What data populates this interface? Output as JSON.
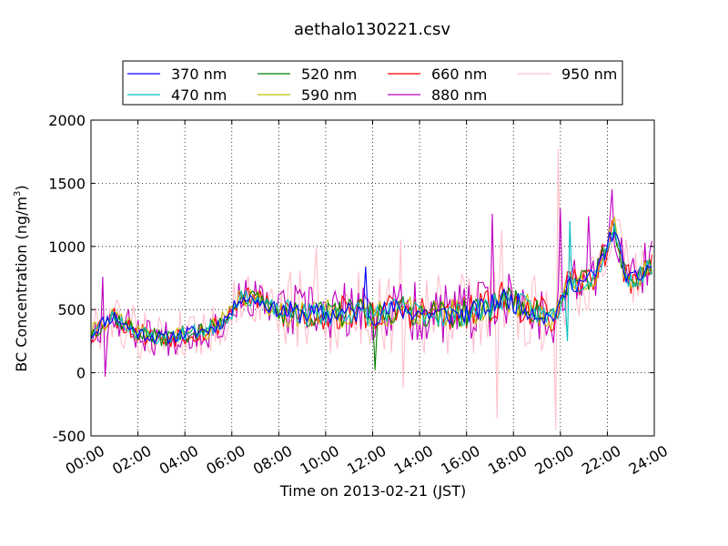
{
  "chart_data": {
    "type": "line",
    "title": "aethalo130221.csv",
    "xlabel": "Time on 2013-02-21 (JST)",
    "ylabel": "BC Concentration (ng/m",
    "ylabel_superscript": "3",
    "ylabel_close": ")",
    "xlim": [
      0,
      24
    ],
    "ylim": [
      -500,
      2000
    ],
    "x_ticks": [
      "00:00",
      "02:00",
      "04:00",
      "06:00",
      "08:00",
      "10:00",
      "12:00",
      "14:00",
      "16:00",
      "18:00",
      "20:00",
      "22:00",
      "24:00"
    ],
    "y_ticks": [
      "-500",
      "0",
      "500",
      "1000",
      "1500",
      "2000"
    ],
    "y_tick_values": [
      -500,
      0,
      500,
      1000,
      1500,
      2000
    ],
    "grid": true,
    "legend_position": "top",
    "x_step_hours": 0.1,
    "baseline": [
      {
        "t": 0,
        "v": 300
      },
      {
        "t": 0.5,
        "v": 400
      },
      {
        "t": 1,
        "v": 450
      },
      {
        "t": 1.5,
        "v": 370
      },
      {
        "t": 2,
        "v": 320
      },
      {
        "t": 3,
        "v": 270
      },
      {
        "t": 4,
        "v": 310
      },
      {
        "t": 5,
        "v": 340
      },
      {
        "t": 5.5,
        "v": 390
      },
      {
        "t": 6,
        "v": 480
      },
      {
        "t": 6.3,
        "v": 600
      },
      {
        "t": 7,
        "v": 580
      },
      {
        "t": 8,
        "v": 490
      },
      {
        "t": 9,
        "v": 470
      },
      {
        "t": 10,
        "v": 460
      },
      {
        "t": 11,
        "v": 480
      },
      {
        "t": 12,
        "v": 460
      },
      {
        "t": 13,
        "v": 500
      },
      {
        "t": 14,
        "v": 480
      },
      {
        "t": 15,
        "v": 460
      },
      {
        "t": 16,
        "v": 470
      },
      {
        "t": 17,
        "v": 520
      },
      {
        "t": 17.5,
        "v": 600
      },
      {
        "t": 18,
        "v": 560
      },
      {
        "t": 19,
        "v": 480
      },
      {
        "t": 19.5,
        "v": 430
      },
      {
        "t": 20,
        "v": 520
      },
      {
        "t": 20.3,
        "v": 700
      },
      {
        "t": 21,
        "v": 720
      },
      {
        "t": 21.5,
        "v": 780
      },
      {
        "t": 22,
        "v": 1000
      },
      {
        "t": 22.3,
        "v": 1150
      },
      {
        "t": 22.7,
        "v": 820
      },
      {
        "t": 23,
        "v": 720
      },
      {
        "t": 23.5,
        "v": 780
      },
      {
        "t": 23.8,
        "v": 850
      }
    ],
    "series": [
      {
        "name": "370 nm",
        "color": "#0000ff",
        "noise": 55,
        "seed": 11
      },
      {
        "name": "470 nm",
        "color": "#00bfbf",
        "noise": 60,
        "seed": 23
      },
      {
        "name": "520 nm",
        "color": "#008000",
        "noise": 70,
        "seed": 37
      },
      {
        "name": "590 nm",
        "color": "#bfbf00",
        "noise": 75,
        "seed": 41
      },
      {
        "name": "660 nm",
        "color": "#ff0000",
        "noise": 90,
        "seed": 53
      },
      {
        "name": "880 nm",
        "color": "#bf00bf",
        "noise": 150,
        "seed": 67
      },
      {
        "name": "950 nm",
        "color": "#ffc0cb",
        "noise": 210,
        "seed": 79
      }
    ],
    "spikes": [
      {
        "series": "880 nm",
        "t": 0.55,
        "v": -30
      },
      {
        "series": "880 nm",
        "t": 0.5,
        "v": 760
      },
      {
        "series": "520 nm",
        "t": 12.1,
        "v": 20
      },
      {
        "series": "370 nm",
        "t": 11.7,
        "v": 840
      },
      {
        "series": "950 nm",
        "t": 9.6,
        "v": 990
      },
      {
        "series": "950 nm",
        "t": 13.2,
        "v": 1050
      },
      {
        "series": "950 nm",
        "t": 13.3,
        "v": -120
      },
      {
        "series": "880 nm",
        "t": 17.1,
        "v": 1260
      },
      {
        "series": "950 nm",
        "t": 17.5,
        "v": 1130
      },
      {
        "series": "950 nm",
        "t": 17.3,
        "v": -360
      },
      {
        "series": "950 nm",
        "t": 19.8,
        "v": -450
      },
      {
        "series": "950 nm",
        "t": 19.9,
        "v": 1770
      },
      {
        "series": "880 nm",
        "t": 20.0,
        "v": 1300
      },
      {
        "series": "470 nm",
        "t": 20.3,
        "v": 250
      },
      {
        "series": "470 nm",
        "t": 20.4,
        "v": 1200
      },
      {
        "series": "880 nm",
        "t": 21.2,
        "v": 1240
      },
      {
        "series": "880 nm",
        "t": 22.2,
        "v": 1450
      },
      {
        "series": "880 nm",
        "t": 23.6,
        "v": 1030
      }
    ]
  }
}
